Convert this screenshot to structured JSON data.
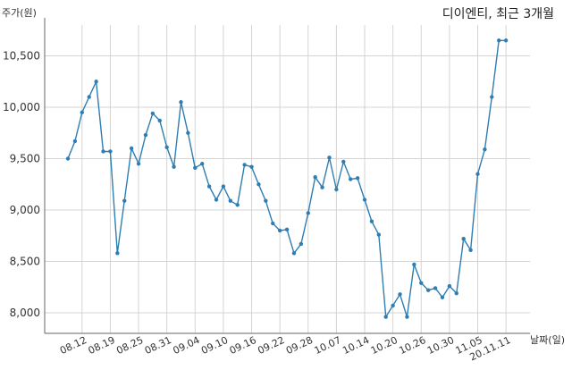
{
  "chart_data": {
    "type": "line",
    "title": "디이엔티, 최근 3개월",
    "ylabel": "주가(원)",
    "xlabel": "날짜(일)",
    "ylim": [
      7800,
      10800
    ],
    "yticks": [
      8000,
      8500,
      9000,
      9500,
      10000,
      10500
    ],
    "ytick_labels": [
      "8,000",
      "8,500",
      "9,000",
      "9,500",
      "10,000",
      "10,500"
    ],
    "grid": true,
    "color": "#2e7eb3",
    "x_labels": [
      "08.12",
      "08.19",
      "08.25",
      "08.31",
      "09.04",
      "09.10",
      "09.16",
      "09.22",
      "09.28",
      "10.07",
      "10.14",
      "10.20",
      "10.26",
      "10.30",
      "11.05",
      "20.11.11"
    ],
    "x_label_index": [
      2,
      6,
      10,
      14,
      18,
      22,
      26,
      30,
      34,
      38,
      42,
      46,
      50,
      54,
      58,
      62
    ],
    "values": [
      9500,
      9670,
      9950,
      10100,
      10250,
      9570,
      9570,
      8580,
      9090,
      9600,
      9450,
      9730,
      9940,
      9870,
      9610,
      9420,
      10050,
      9750,
      9410,
      9450,
      9230,
      9100,
      9230,
      9090,
      9050,
      9440,
      9420,
      9250,
      9090,
      8870,
      8800,
      8810,
      8580,
      8670,
      8970,
      9320,
      9220,
      9510,
      9200,
      9470,
      9300,
      9310,
      9100,
      8890,
      8760,
      7960,
      8070,
      8180,
      7960,
      8470,
      8290,
      8220,
      8240,
      8150,
      8260,
      8190,
      8720,
      8610,
      9350,
      9590,
      10100,
      10650,
      10650
    ]
  }
}
